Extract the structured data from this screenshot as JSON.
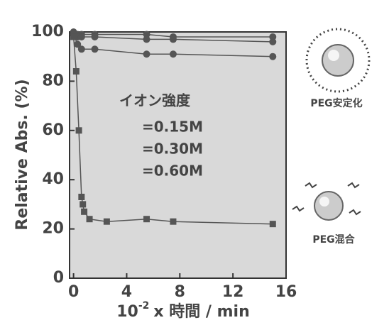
{
  "chart_data": {
    "type": "line",
    "ylabel": "Relative Abs. (%)",
    "xlabel_base": "10",
    "xlabel_exp": "-2",
    "xlabel_rest": "x 時間 / min",
    "annotations": [
      "イオン強度",
      "=0.15M",
      "=0.30M",
      "=0.60M"
    ],
    "icon_labels": [
      "PEG安定化",
      "PEG混合"
    ],
    "xlim": [
      -0.3,
      16
    ],
    "ylim": [
      0,
      100
    ],
    "xticks": [
      0,
      4,
      8,
      12,
      16
    ],
    "yticks": [
      0,
      20,
      40,
      60,
      80,
      100
    ],
    "background": "#d9d9d9",
    "series": [
      {
        "marker": "circle",
        "color": "#555555",
        "x": [
          0,
          0.3,
          0.6,
          1.6,
          5.5,
          7.5,
          15
        ],
        "values": [
          100,
          99,
          99,
          99,
          99,
          98,
          98
        ]
      },
      {
        "marker": "circle",
        "color": "#555555",
        "x": [
          0,
          0.3,
          0.6,
          1.6,
          5.5,
          7.5,
          15
        ],
        "values": [
          99,
          98,
          98,
          98,
          97,
          97,
          96
        ]
      },
      {
        "marker": "circle",
        "color": "#555555",
        "x": [
          0,
          0.3,
          0.6,
          1.6,
          5.5,
          7.5,
          15
        ],
        "values": [
          99,
          95,
          93,
          93,
          91,
          91,
          90
        ]
      },
      {
        "marker": "square",
        "color": "#555555",
        "x": [
          0,
          0.2,
          0.4,
          0.6,
          0.7,
          0.8,
          1.2,
          2.5,
          5.5,
          7.5,
          15
        ],
        "values": [
          98,
          84,
          60,
          33,
          30,
          27,
          24,
          23,
          24,
          23,
          22
        ]
      }
    ]
  }
}
